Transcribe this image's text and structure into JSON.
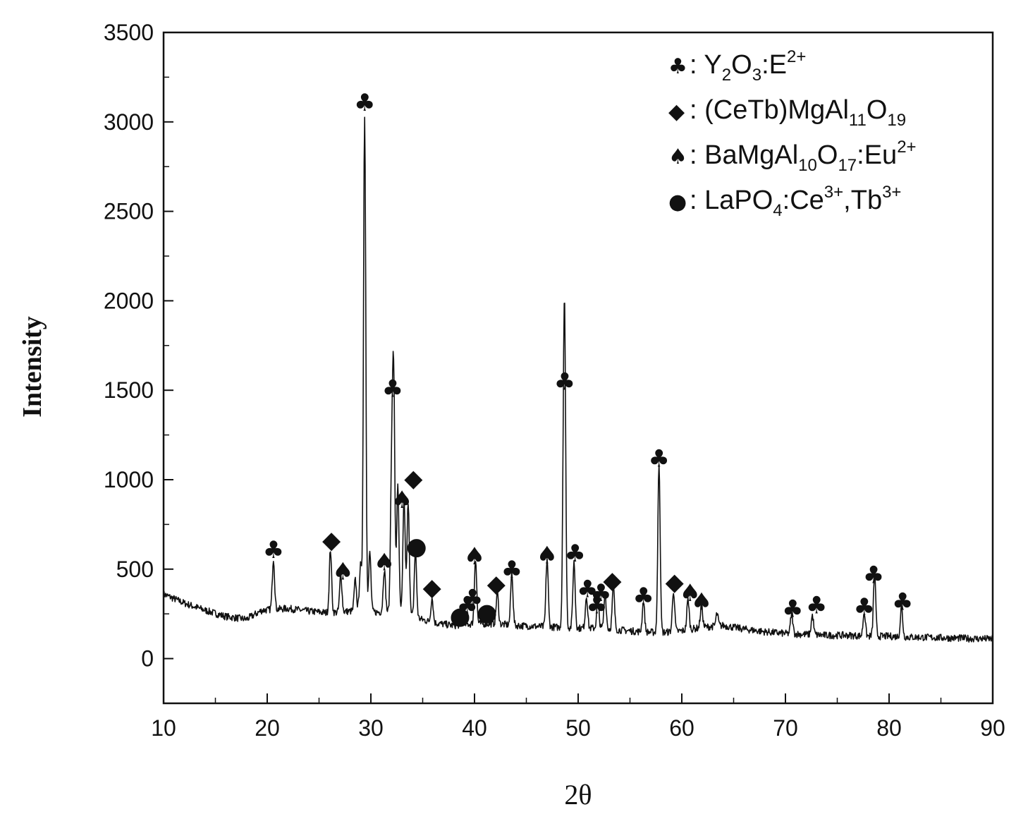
{
  "chart_data": {
    "type": "line",
    "xlabel": "2θ",
    "ylabel": "Intensity",
    "xlim": [
      10,
      90
    ],
    "ylim": [
      -250,
      3500
    ],
    "x_ticks": [
      10,
      20,
      30,
      40,
      50,
      60,
      70,
      80,
      90
    ],
    "y_ticks": [
      0,
      500,
      1000,
      1500,
      2000,
      2500,
      3000,
      3500
    ],
    "grid": false,
    "legend_position": "top-right",
    "baseline": [
      [
        10,
        360
      ],
      [
        12,
        310
      ],
      [
        14,
        270
      ],
      [
        16,
        235
      ],
      [
        18,
        220
      ],
      [
        19.5,
        270
      ],
      [
        22,
        280
      ],
      [
        24,
        265
      ],
      [
        26,
        255
      ],
      [
        28,
        265
      ],
      [
        30,
        260
      ],
      [
        32,
        260
      ],
      [
        34,
        235
      ],
      [
        36,
        200
      ],
      [
        38,
        185
      ],
      [
        40,
        195
      ],
      [
        42,
        195
      ],
      [
        44,
        185
      ],
      [
        46,
        180
      ],
      [
        48,
        175
      ],
      [
        50,
        170
      ],
      [
        52,
        170
      ],
      [
        54,
        160
      ],
      [
        56,
        150
      ],
      [
        58,
        145
      ],
      [
        60,
        155
      ],
      [
        62,
        175
      ],
      [
        64,
        185
      ],
      [
        66,
        165
      ],
      [
        68,
        150
      ],
      [
        70,
        140
      ],
      [
        72,
        135
      ],
      [
        74,
        130
      ],
      [
        76,
        130
      ],
      [
        78,
        125
      ],
      [
        80,
        125
      ],
      [
        82,
        120
      ],
      [
        84,
        118
      ],
      [
        86,
        115
      ],
      [
        88,
        112
      ],
      [
        90,
        110
      ]
    ],
    "peaks": [
      {
        "x": 20.6,
        "y": 560
      },
      {
        "x": 26.1,
        "y": 610
      },
      {
        "x": 27.1,
        "y": 470
      },
      {
        "x": 28.5,
        "y": 440
      },
      {
        "x": 29.0,
        "y": 520
      },
      {
        "x": 29.4,
        "y": 3040
      },
      {
        "x": 29.9,
        "y": 590
      },
      {
        "x": 31.3,
        "y": 500
      },
      {
        "x": 32.0,
        "y": 1000
      },
      {
        "x": 32.2,
        "y": 1540
      },
      {
        "x": 32.6,
        "y": 960
      },
      {
        "x": 33.2,
        "y": 900
      },
      {
        "x": 33.6,
        "y": 880
      },
      {
        "x": 34.3,
        "y": 600
      },
      {
        "x": 35.9,
        "y": 340
      },
      {
        "x": 38.8,
        "y": 290
      },
      {
        "x": 40.1,
        "y": 560
      },
      {
        "x": 42.2,
        "y": 370
      },
      {
        "x": 43.6,
        "y": 480
      },
      {
        "x": 47.0,
        "y": 560
      },
      {
        "x": 48.6,
        "y": 800
      },
      {
        "x": 48.7,
        "y": 1560
      },
      {
        "x": 49.6,
        "y": 540
      },
      {
        "x": 50.8,
        "y": 350
      },
      {
        "x": 51.9,
        "y": 330
      },
      {
        "x": 52.6,
        "y": 360
      },
      {
        "x": 53.4,
        "y": 400
      },
      {
        "x": 56.3,
        "y": 320
      },
      {
        "x": 57.8,
        "y": 1100
      },
      {
        "x": 59.2,
        "y": 380
      },
      {
        "x": 60.6,
        "y": 330
      },
      {
        "x": 61.9,
        "y": 300
      },
      {
        "x": 63.4,
        "y": 250
      },
      {
        "x": 70.6,
        "y": 250
      },
      {
        "x": 72.6,
        "y": 240
      },
      {
        "x": 77.6,
        "y": 260
      },
      {
        "x": 78.6,
        "y": 470
      },
      {
        "x": 81.2,
        "y": 290
      }
    ],
    "markers": [
      {
        "phase": "club",
        "x": 20.6,
        "y": 610
      },
      {
        "phase": "diamond",
        "x": 26.2,
        "y": 665
      },
      {
        "phase": "spade",
        "x": 27.3,
        "y": 490
      },
      {
        "phase": "club",
        "x": 29.4,
        "y": 3110
      },
      {
        "phase": "spade",
        "x": 31.3,
        "y": 540
      },
      {
        "phase": "club",
        "x": 32.1,
        "y": 1510
      },
      {
        "phase": "spade",
        "x": 33.0,
        "y": 890
      },
      {
        "phase": "diamond",
        "x": 34.1,
        "y": 1010
      },
      {
        "phase": "dot",
        "x": 34.4,
        "y": 630
      },
      {
        "phase": "diamond",
        "x": 35.9,
        "y": 400
      },
      {
        "phase": "dot",
        "x": 38.6,
        "y": 240
      },
      {
        "phase": "club",
        "x": 39.3,
        "y": 300
      },
      {
        "phase": "club",
        "x": 39.8,
        "y": 340
      },
      {
        "phase": "spade",
        "x": 40.0,
        "y": 575
      },
      {
        "phase": "dot",
        "x": 41.2,
        "y": 260
      },
      {
        "phase": "diamond",
        "x": 42.1,
        "y": 420
      },
      {
        "phase": "club",
        "x": 43.6,
        "y": 500
      },
      {
        "phase": "spade",
        "x": 47.0,
        "y": 580
      },
      {
        "phase": "club",
        "x": 48.7,
        "y": 1550
      },
      {
        "phase": "club",
        "x": 49.7,
        "y": 590
      },
      {
        "phase": "club",
        "x": 50.9,
        "y": 390
      },
      {
        "phase": "club",
        "x": 51.8,
        "y": 300
      },
      {
        "phase": "club",
        "x": 52.2,
        "y": 370
      },
      {
        "phase": "diamond",
        "x": 53.3,
        "y": 440
      },
      {
        "phase": "club",
        "x": 56.3,
        "y": 350
      },
      {
        "phase": "club",
        "x": 57.8,
        "y": 1120
      },
      {
        "phase": "diamond",
        "x": 59.3,
        "y": 430
      },
      {
        "phase": "spade",
        "x": 60.8,
        "y": 370
      },
      {
        "phase": "spade",
        "x": 61.9,
        "y": 320
      },
      {
        "phase": "club",
        "x": 70.7,
        "y": 280
      },
      {
        "phase": "club",
        "x": 73.0,
        "y": 300
      },
      {
        "phase": "club",
        "x": 77.6,
        "y": 290
      },
      {
        "phase": "club",
        "x": 78.5,
        "y": 470
      },
      {
        "phase": "club",
        "x": 81.3,
        "y": 320
      }
    ]
  },
  "legend": {
    "glyphs": {
      "club": "♣",
      "diamond": "◆",
      "spade": "♠",
      "dot": "●"
    },
    "entries": [
      {
        "phase": "club",
        "prefix": ": Y",
        "s1": "2",
        "m1": "O",
        "s2": "3",
        "m2": ":E",
        "sup": "2+"
      },
      {
        "phase": "diamond",
        "prefix": ": (CeTb)MgAl",
        "s1": "11",
        "m1": "O",
        "s2": "19"
      },
      {
        "phase": "spade",
        "prefix": ": BaMgAl",
        "s1": "10",
        "m1": "O",
        "s2": "17",
        "m2": ":Eu",
        "sup": "2+"
      },
      {
        "phase": "dot",
        "prefix": ": LaPO",
        "s1": "4",
        "m1": ":Ce",
        "sup": "3+",
        "m2": ",Tb",
        "sup2": "3+"
      }
    ]
  },
  "colors": {
    "line": "#111111",
    "axis": "#111111"
  }
}
